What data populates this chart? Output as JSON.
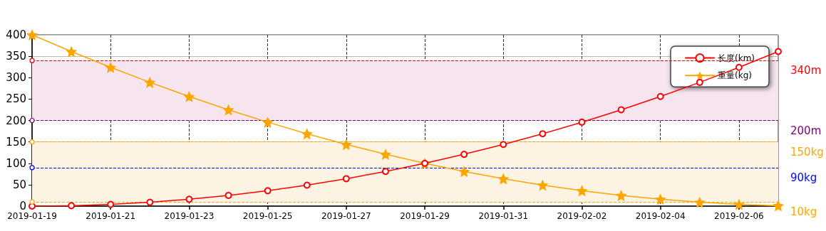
{
  "chart_data": {
    "type": "line",
    "categories": [
      "2019-01-19",
      null,
      "2019-01-21",
      null,
      "2019-01-23",
      null,
      "2019-01-25",
      null,
      "2019-01-27",
      null,
      "2019-01-29",
      null,
      "2019-01-31",
      null,
      "2019-02-02",
      null,
      "2019-02-04",
      null,
      "2019-02-06",
      null
    ],
    "series": [
      {
        "name": "长度(km)",
        "color": "#ff0000",
        "marker": "circle",
        "values": [
          0,
          1,
          4,
          9,
          16,
          25,
          36,
          49,
          64,
          81,
          100,
          121,
          144,
          169,
          196,
          225,
          256,
          289,
          324,
          361
        ]
      },
      {
        "name": "重量(kg)",
        "color": "#ffa500",
        "marker": "star",
        "values": [
          400,
          361,
          324,
          289,
          256,
          225,
          196,
          169,
          144,
          121,
          100,
          81,
          64,
          49,
          36,
          25,
          16,
          9,
          4,
          1
        ]
      }
    ],
    "ylim": [
      0,
      400
    ],
    "yticks": [
      0,
      50,
      100,
      150,
      200,
      250,
      300,
      350,
      400
    ],
    "ref_lines": [
      {
        "axis": "y",
        "value": 340,
        "label": "340m",
        "color": "#ff0000",
        "line_style": "dashed"
      },
      {
        "axis": "y",
        "value": 200,
        "label": "200m",
        "color": "#800080",
        "line_style": "dashed"
      },
      {
        "axis": "y",
        "value": 150,
        "label": "150kg",
        "color": "#ffa500",
        "line_style": "dashed"
      },
      {
        "axis": "y",
        "value": 90,
        "label": "90kg",
        "color": "#0000ff",
        "line_style": "dashed"
      },
      {
        "axis": "y",
        "value": 10,
        "label": "10kg",
        "color": "#ffa500",
        "line_style": "dashed"
      }
    ],
    "bands": [
      {
        "axis": "y",
        "from": 200,
        "to": 340,
        "color": "#f6e4ee"
      },
      {
        "axis": "y",
        "from": 10,
        "to": 150,
        "color": "#fdf3e3"
      }
    ],
    "grid": true,
    "legend": "top right",
    "line_style": "solid"
  }
}
